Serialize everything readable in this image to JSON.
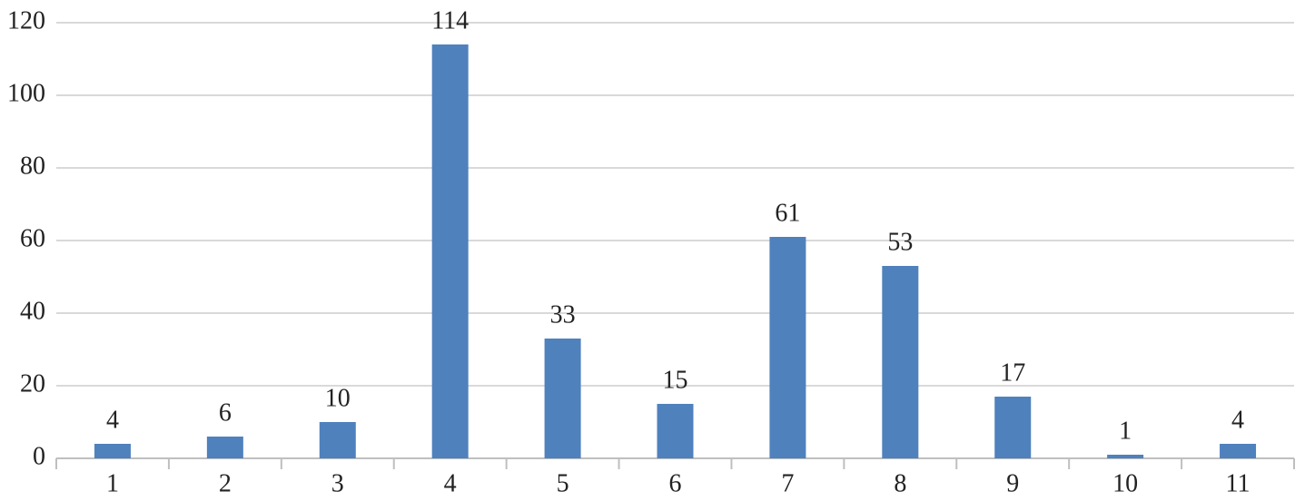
{
  "chart_data": {
    "type": "bar",
    "categories": [
      "1",
      "2",
      "3",
      "4",
      "5",
      "6",
      "7",
      "8",
      "9",
      "10",
      "11"
    ],
    "values": [
      4,
      6,
      10,
      114,
      33,
      15,
      61,
      53,
      17,
      1,
      4
    ],
    "color": "#4f81bd",
    "ylim": [
      0,
      120
    ],
    "yticks": [
      0,
      20,
      40,
      60,
      80,
      100,
      120
    ],
    "grid": true
  }
}
